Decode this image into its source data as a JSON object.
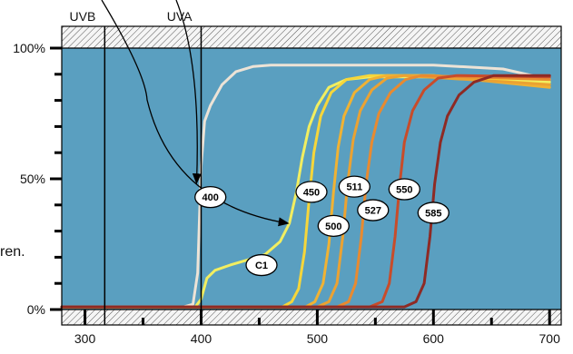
{
  "chart_data": {
    "type": "line",
    "title": "",
    "xlabel": "",
    "ylabel": "",
    "xlim": [
      280,
      710
    ],
    "ylim": [
      0,
      100
    ],
    "x_ticks": [
      300,
      400,
      500,
      600,
      700
    ],
    "y_ticks": [
      {
        "value": 0,
        "label": "0%"
      },
      {
        "value": 50,
        "label": "50%"
      },
      {
        "value": 100,
        "label": "100%"
      }
    ],
    "grid": false,
    "plot_background": "#5a9fc0",
    "bands": [
      {
        "label": "UVB",
        "boundary_x": 317
      },
      {
        "label": "UVA",
        "boundary_x": 400
      }
    ],
    "side_text": "ren.",
    "series": [
      {
        "label": "400",
        "color": "#ede3d6",
        "points": [
          [
            280,
            1
          ],
          [
            385,
            1
          ],
          [
            393,
            2
          ],
          [
            397,
            14
          ],
          [
            400,
            55
          ],
          [
            403,
            72
          ],
          [
            408,
            78
          ],
          [
            418,
            86
          ],
          [
            430,
            91
          ],
          [
            445,
            93
          ],
          [
            460,
            93.5
          ],
          [
            600,
            93.5
          ],
          [
            660,
            92
          ],
          [
            700,
            88
          ]
        ]
      },
      {
        "label": "C1",
        "color": "#f2ee60",
        "points": [
          [
            280,
            1
          ],
          [
            395,
            1
          ],
          [
            400,
            4
          ],
          [
            405,
            12
          ],
          [
            412,
            15
          ],
          [
            425,
            17
          ],
          [
            440,
            19
          ],
          [
            455,
            21
          ],
          [
            468,
            26
          ],
          [
            476,
            33
          ],
          [
            482,
            45
          ],
          [
            487,
            58
          ],
          [
            493,
            70
          ],
          [
            500,
            78
          ],
          [
            510,
            85
          ],
          [
            525,
            88
          ],
          [
            545,
            89
          ],
          [
            600,
            89
          ],
          [
            700,
            87
          ]
        ]
      },
      {
        "label": "450",
        "color": "#f6d63a",
        "points": [
          [
            280,
            1
          ],
          [
            470,
            1
          ],
          [
            478,
            3
          ],
          [
            484,
            8
          ],
          [
            489,
            22
          ],
          [
            493,
            42
          ],
          [
            497,
            60
          ],
          [
            503,
            74
          ],
          [
            512,
            83
          ],
          [
            525,
            88
          ],
          [
            545,
            89.5
          ],
          [
            600,
            89.5
          ],
          [
            700,
            86
          ]
        ]
      },
      {
        "label": "500",
        "color": "#f0b233",
        "points": [
          [
            280,
            1
          ],
          [
            490,
            1
          ],
          [
            498,
            3
          ],
          [
            505,
            10
          ],
          [
            510,
            25
          ],
          [
            514,
            45
          ],
          [
            518,
            62
          ],
          [
            523,
            74
          ],
          [
            532,
            83
          ],
          [
            545,
            88
          ],
          [
            560,
            89.5
          ],
          [
            600,
            89.5
          ],
          [
            700,
            85
          ]
        ]
      },
      {
        "label": "511",
        "color": "#eba232",
        "points": [
          [
            280,
            1
          ],
          [
            500,
            1
          ],
          [
            510,
            3
          ],
          [
            517,
            10
          ],
          [
            522,
            28
          ],
          [
            526,
            48
          ],
          [
            531,
            65
          ],
          [
            537,
            76
          ],
          [
            547,
            84
          ],
          [
            560,
            88.5
          ],
          [
            575,
            89.5
          ],
          [
            700,
            86
          ]
        ]
      },
      {
        "label": "527",
        "color": "#e88a30",
        "points": [
          [
            280,
            1
          ],
          [
            517,
            1
          ],
          [
            527,
            3
          ],
          [
            533,
            10
          ],
          [
            538,
            28
          ],
          [
            542,
            48
          ],
          [
            547,
            64
          ],
          [
            553,
            75
          ],
          [
            563,
            83
          ],
          [
            576,
            88
          ],
          [
            590,
            89.5
          ],
          [
            700,
            88
          ]
        ]
      },
      {
        "label": "550",
        "color": "#c84c2a",
        "points": [
          [
            280,
            1
          ],
          [
            545,
            1
          ],
          [
            556,
            3
          ],
          [
            562,
            10
          ],
          [
            567,
            28
          ],
          [
            571,
            48
          ],
          [
            575,
            64
          ],
          [
            582,
            76
          ],
          [
            592,
            84
          ],
          [
            604,
            88.5
          ],
          [
            620,
            89.5
          ],
          [
            700,
            89
          ]
        ]
      },
      {
        "label": "585",
        "color": "#8e2a24",
        "points": [
          [
            280,
            1
          ],
          [
            575,
            1
          ],
          [
            585,
            3
          ],
          [
            592,
            10
          ],
          [
            597,
            28
          ],
          [
            601,
            48
          ],
          [
            606,
            64
          ],
          [
            612,
            74
          ],
          [
            622,
            82
          ],
          [
            635,
            87
          ],
          [
            652,
            89.5
          ],
          [
            700,
            89.5
          ]
        ]
      }
    ],
    "labels": [
      {
        "text": "400",
        "x": 408,
        "y": 43
      },
      {
        "text": "450",
        "x": 495,
        "y": 45
      },
      {
        "text": "511",
        "x": 532,
        "y": 47
      },
      {
        "text": "550",
        "x": 575,
        "y": 46
      },
      {
        "text": "527",
        "x": 548,
        "y": 38
      },
      {
        "text": "585",
        "x": 600,
        "y": 37
      },
      {
        "text": "500",
        "x": 514,
        "y": 32
      },
      {
        "text": "C1",
        "x": 452,
        "y": 17
      }
    ]
  }
}
